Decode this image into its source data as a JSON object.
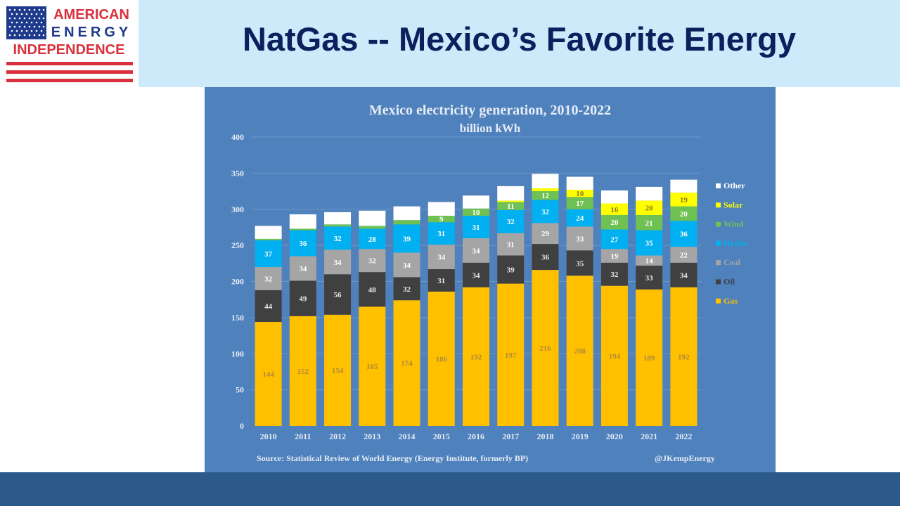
{
  "brand": {
    "line1": "AMERICAN",
    "line2": "ENERGY",
    "line3": "INDEPENDENCE",
    "colors": {
      "red": "#d9313d",
      "blue": "#1d3a8c"
    }
  },
  "slide": {
    "title": "NatGas -- Mexico’s Favorite Energy"
  },
  "chart_source": "Source: Statistical Review of World Energy (Energy Institute, formerly BP)",
  "chart_handle": "@JKempEnergy",
  "chart_data": {
    "type": "bar",
    "stacked": true,
    "title": "Mexico electricity generation, 2010-2022",
    "subtitle": "billion kWh",
    "categories": [
      "2010",
      "2011",
      "2012",
      "2013",
      "2014",
      "2015",
      "2016",
      "2017",
      "2018",
      "2019",
      "2020",
      "2021",
      "2022"
    ],
    "ylim": [
      0,
      400
    ],
    "yticks": [
      0,
      50,
      100,
      150,
      200,
      250,
      300,
      350,
      400
    ],
    "grid": true,
    "legend_position": "right",
    "series": [
      {
        "name": "Gas",
        "color": "#ffc000",
        "label_color": "#b08a3a",
        "values": [
          144,
          152,
          154,
          165,
          174,
          186,
          192,
          197,
          216,
          208,
          194,
          189,
          192
        ],
        "labels": [
          "144",
          "152",
          "154",
          "165",
          "174",
          "186",
          "192",
          "197",
          "216",
          "208",
          "194",
          "189",
          "192"
        ]
      },
      {
        "name": "Oil",
        "color": "#404040",
        "label_color": "#e8e8e8",
        "values": [
          44,
          49,
          56,
          48,
          32,
          31,
          34,
          39,
          36,
          35,
          32,
          33,
          34
        ],
        "labels": [
          "44",
          "49",
          "56",
          "48",
          "32",
          "31",
          "34",
          "39",
          "36",
          "35",
          "32",
          "33",
          "34"
        ]
      },
      {
        "name": "Coal",
        "color": "#a5a5a5",
        "label_color": "#ffffff",
        "values": [
          32,
          34,
          34,
          32,
          34,
          34,
          34,
          31,
          29,
          33,
          19,
          14,
          22
        ],
        "labels": [
          "32",
          "34",
          "34",
          "32",
          "34",
          "34",
          "34",
          "31",
          "29",
          "33",
          "19",
          "14",
          "22"
        ]
      },
      {
        "name": "Hydro",
        "color": "#00b0f0",
        "label_color": "#ffffff",
        "values": [
          37,
          36,
          32,
          28,
          39,
          31,
          31,
          32,
          32,
          24,
          27,
          35,
          36
        ],
        "labels": [
          "37",
          "36",
          "32",
          "28",
          "39",
          "31",
          "31",
          "32",
          "32",
          "24",
          "27",
          "35",
          "36"
        ]
      },
      {
        "name": "Wind",
        "color": "#70c154",
        "label_color": "#ffffff",
        "values": [
          2,
          2,
          3,
          4,
          6,
          9,
          10,
          11,
          12,
          17,
          20,
          21,
          20
        ],
        "labels": [
          "",
          "",
          "",
          "",
          "",
          "9",
          "10",
          "11",
          "12",
          "17",
          "20",
          "21",
          "20"
        ]
      },
      {
        "name": "Solar",
        "color": "#ffff00",
        "label_color": "#8a7a1a",
        "values": [
          0,
          0,
          0,
          0,
          0,
          0,
          0,
          2,
          4,
          10,
          16,
          20,
          19
        ],
        "labels": [
          "",
          "",
          "",
          "",
          "",
          "",
          "",
          "",
          "",
          "10",
          "16",
          "20",
          "19"
        ]
      },
      {
        "name": "Other",
        "color": "#ffffff",
        "label_color": "#ffffff",
        "values": [
          18,
          20,
          17,
          21,
          19,
          19,
          18,
          20,
          20,
          18,
          18,
          19,
          18
        ],
        "labels": [
          "",
          "",
          "",
          "",
          "",
          "",
          "",
          "",
          "",
          "",
          "",
          "",
          ""
        ]
      }
    ]
  }
}
